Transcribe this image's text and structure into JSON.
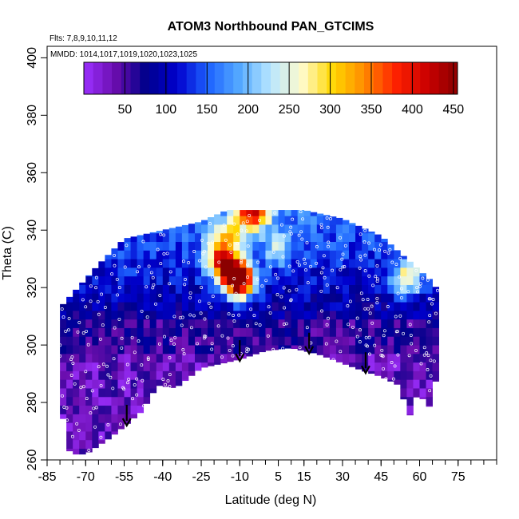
{
  "chart_data": {
    "type": "heatmap",
    "title": "ATOM3 Northbound PAN_GTCIMS",
    "annotations": {
      "flights": "Flts: 7,8,9,10,11,12",
      "dates": "MMDD: 1014,1017,1019,1020,1023,1025"
    },
    "xlabel": "Latitude (deg N)",
    "ylabel": "Theta (C)",
    "xlim": [
      -85,
      90
    ],
    "ylim": [
      260,
      404
    ],
    "x_ticks": [
      -85,
      -70,
      -55,
      -40,
      -25,
      -10,
      5,
      15,
      30,
      45,
      60,
      75
    ],
    "y_ticks": [
      260,
      280,
      300,
      320,
      340,
      360,
      380,
      400
    ],
    "colorbar": {
      "range": [
        0,
        455
      ],
      "ticks": [
        50,
        100,
        150,
        200,
        250,
        300,
        350,
        400,
        450
      ],
      "colors": [
        "#9b30ff",
        "#6a0dad",
        "#00008b",
        "#0000cd",
        "#1e64ff",
        "#55aaff",
        "#b8e6ff",
        "#fffbcc",
        "#ffd700",
        "#ff8c00",
        "#ff2200",
        "#cc0000",
        "#8b0000"
      ]
    },
    "arrows_latitude": [
      -54,
      -10,
      17,
      39
    ],
    "coverage_top_theta": [
      {
        "lat": -80,
        "theta": 313
      },
      {
        "lat": -75,
        "theta": 318
      },
      {
        "lat": -65,
        "theta": 328
      },
      {
        "lat": -55,
        "theta": 337
      },
      {
        "lat": -40,
        "theta": 340
      },
      {
        "lat": -25,
        "theta": 343
      },
      {
        "lat": -15,
        "theta": 347
      },
      {
        "lat": 0,
        "theta": 347
      },
      {
        "lat": 15,
        "theta": 347
      },
      {
        "lat": 30,
        "theta": 344
      },
      {
        "lat": 45,
        "theta": 338
      },
      {
        "lat": 55,
        "theta": 330
      },
      {
        "lat": 65,
        "theta": 322
      },
      {
        "lat": 70,
        "theta": 315
      }
    ],
    "coverage_bottom_theta": [
      {
        "lat": -80,
        "theta": 280
      },
      {
        "lat": -76,
        "theta": 262
      },
      {
        "lat": -70,
        "theta": 262
      },
      {
        "lat": -60,
        "theta": 268
      },
      {
        "lat": -48,
        "theta": 277
      },
      {
        "lat": -42,
        "theta": 286
      },
      {
        "lat": -35,
        "theta": 285
      },
      {
        "lat": -25,
        "theta": 292
      },
      {
        "lat": -10,
        "theta": 295
      },
      {
        "lat": 0,
        "theta": 298
      },
      {
        "lat": 10,
        "theta": 299
      },
      {
        "lat": 20,
        "theta": 297
      },
      {
        "lat": 35,
        "theta": 292
      },
      {
        "lat": 45,
        "theta": 289
      },
      {
        "lat": 52,
        "theta": 286
      },
      {
        "lat": 56,
        "theta": 275
      },
      {
        "lat": 60,
        "theta": 285
      },
      {
        "lat": 63,
        "theta": 276
      },
      {
        "lat": 67,
        "theta": 290
      }
    ],
    "high_value_regions": [
      {
        "lat": -10,
        "theta": 322,
        "value": 440
      },
      {
        "lat": -13,
        "theta": 326,
        "value": 360
      },
      {
        "lat": -18,
        "theta": 330,
        "value": 320
      },
      {
        "lat": -15,
        "theta": 338,
        "value": 280
      },
      {
        "lat": -5,
        "theta": 346,
        "value": 400
      },
      {
        "lat": 5,
        "theta": 334,
        "value": 230
      },
      {
        "lat": 55,
        "theta": 323,
        "value": 300
      }
    ]
  }
}
